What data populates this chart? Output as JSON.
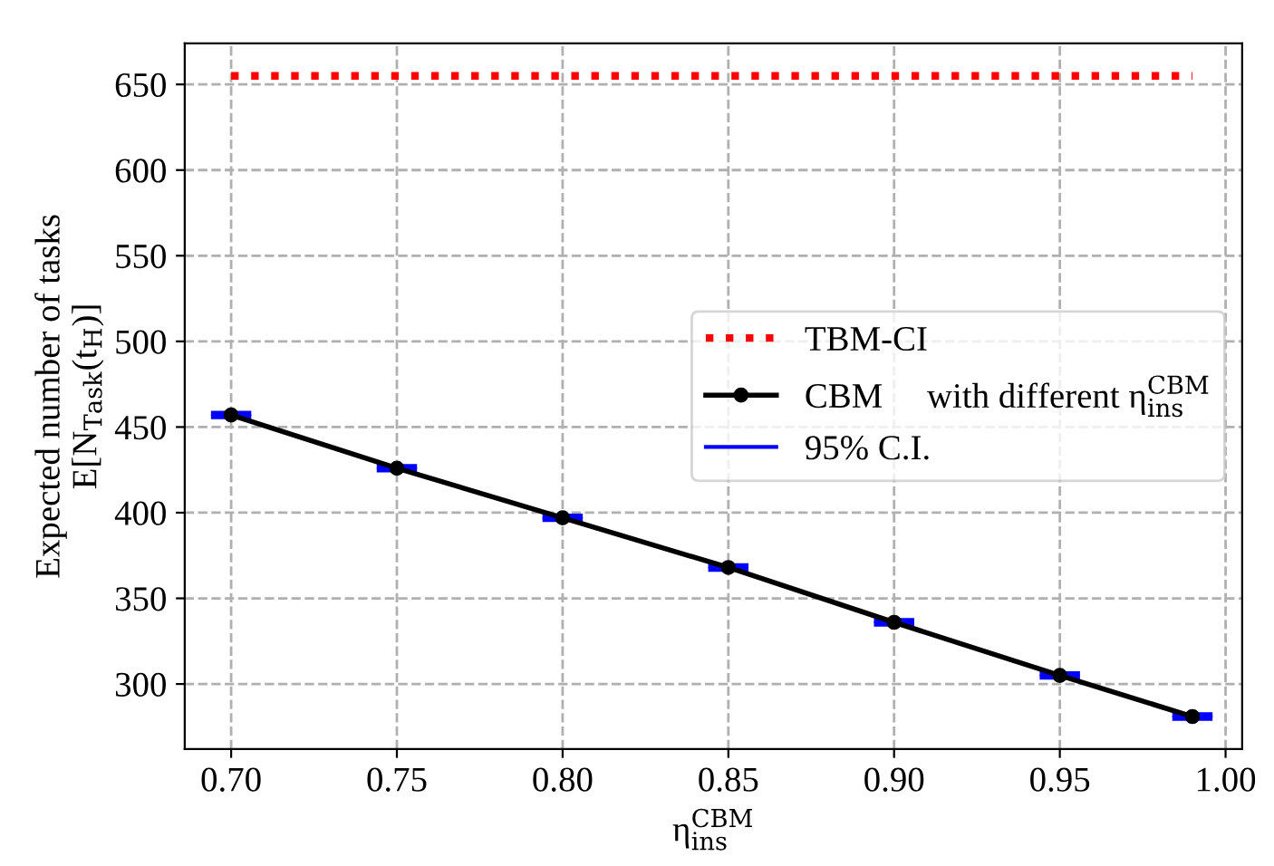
{
  "chart_data": {
    "type": "line",
    "xlabel": "η$^{CBM}$$_{ins}$",
    "ylabel": "Expected number of tasks\nE[N$_{Task}$(t$_{H}$)]",
    "xlim": [
      0.686,
      1.005
    ],
    "xticks": [
      {
        "value": 0.7,
        "label": "0.70"
      },
      {
        "value": 0.75,
        "label": "0.75"
      },
      {
        "value": 0.8,
        "label": "0.80"
      },
      {
        "value": 0.85,
        "label": "0.85"
      },
      {
        "value": 0.9,
        "label": "0.90"
      },
      {
        "value": 0.95,
        "label": "0.95"
      },
      {
        "value": 1.0,
        "label": "1.00"
      }
    ],
    "ylim": [
      262,
      674
    ],
    "yticks": [
      300,
      350,
      400,
      450,
      500,
      550,
      600,
      650
    ],
    "grid": true,
    "legend": "right",
    "annotations": [
      "95% C.I."
    ],
    "series": [
      {
        "name": "TBM-CI",
        "color": "#ff0000",
        "x": [
          0.7,
          0.99
        ],
        "values": [
          655,
          655
        ],
        "line_style": "dotted",
        "marker": "none"
      },
      {
        "name": "CBM     with different η$^{CBM}$$_{ins}$",
        "color": "#000000",
        "x": [
          0.7,
          0.75,
          0.8,
          0.85,
          0.9,
          0.95,
          0.99
        ],
        "values": [
          457,
          426,
          397,
          368,
          336,
          305,
          281
        ],
        "marker": "circle",
        "line_style": "solid",
        "errors": [
          1,
          1,
          1,
          1,
          1,
          1,
          1
        ]
      }
    ]
  }
}
